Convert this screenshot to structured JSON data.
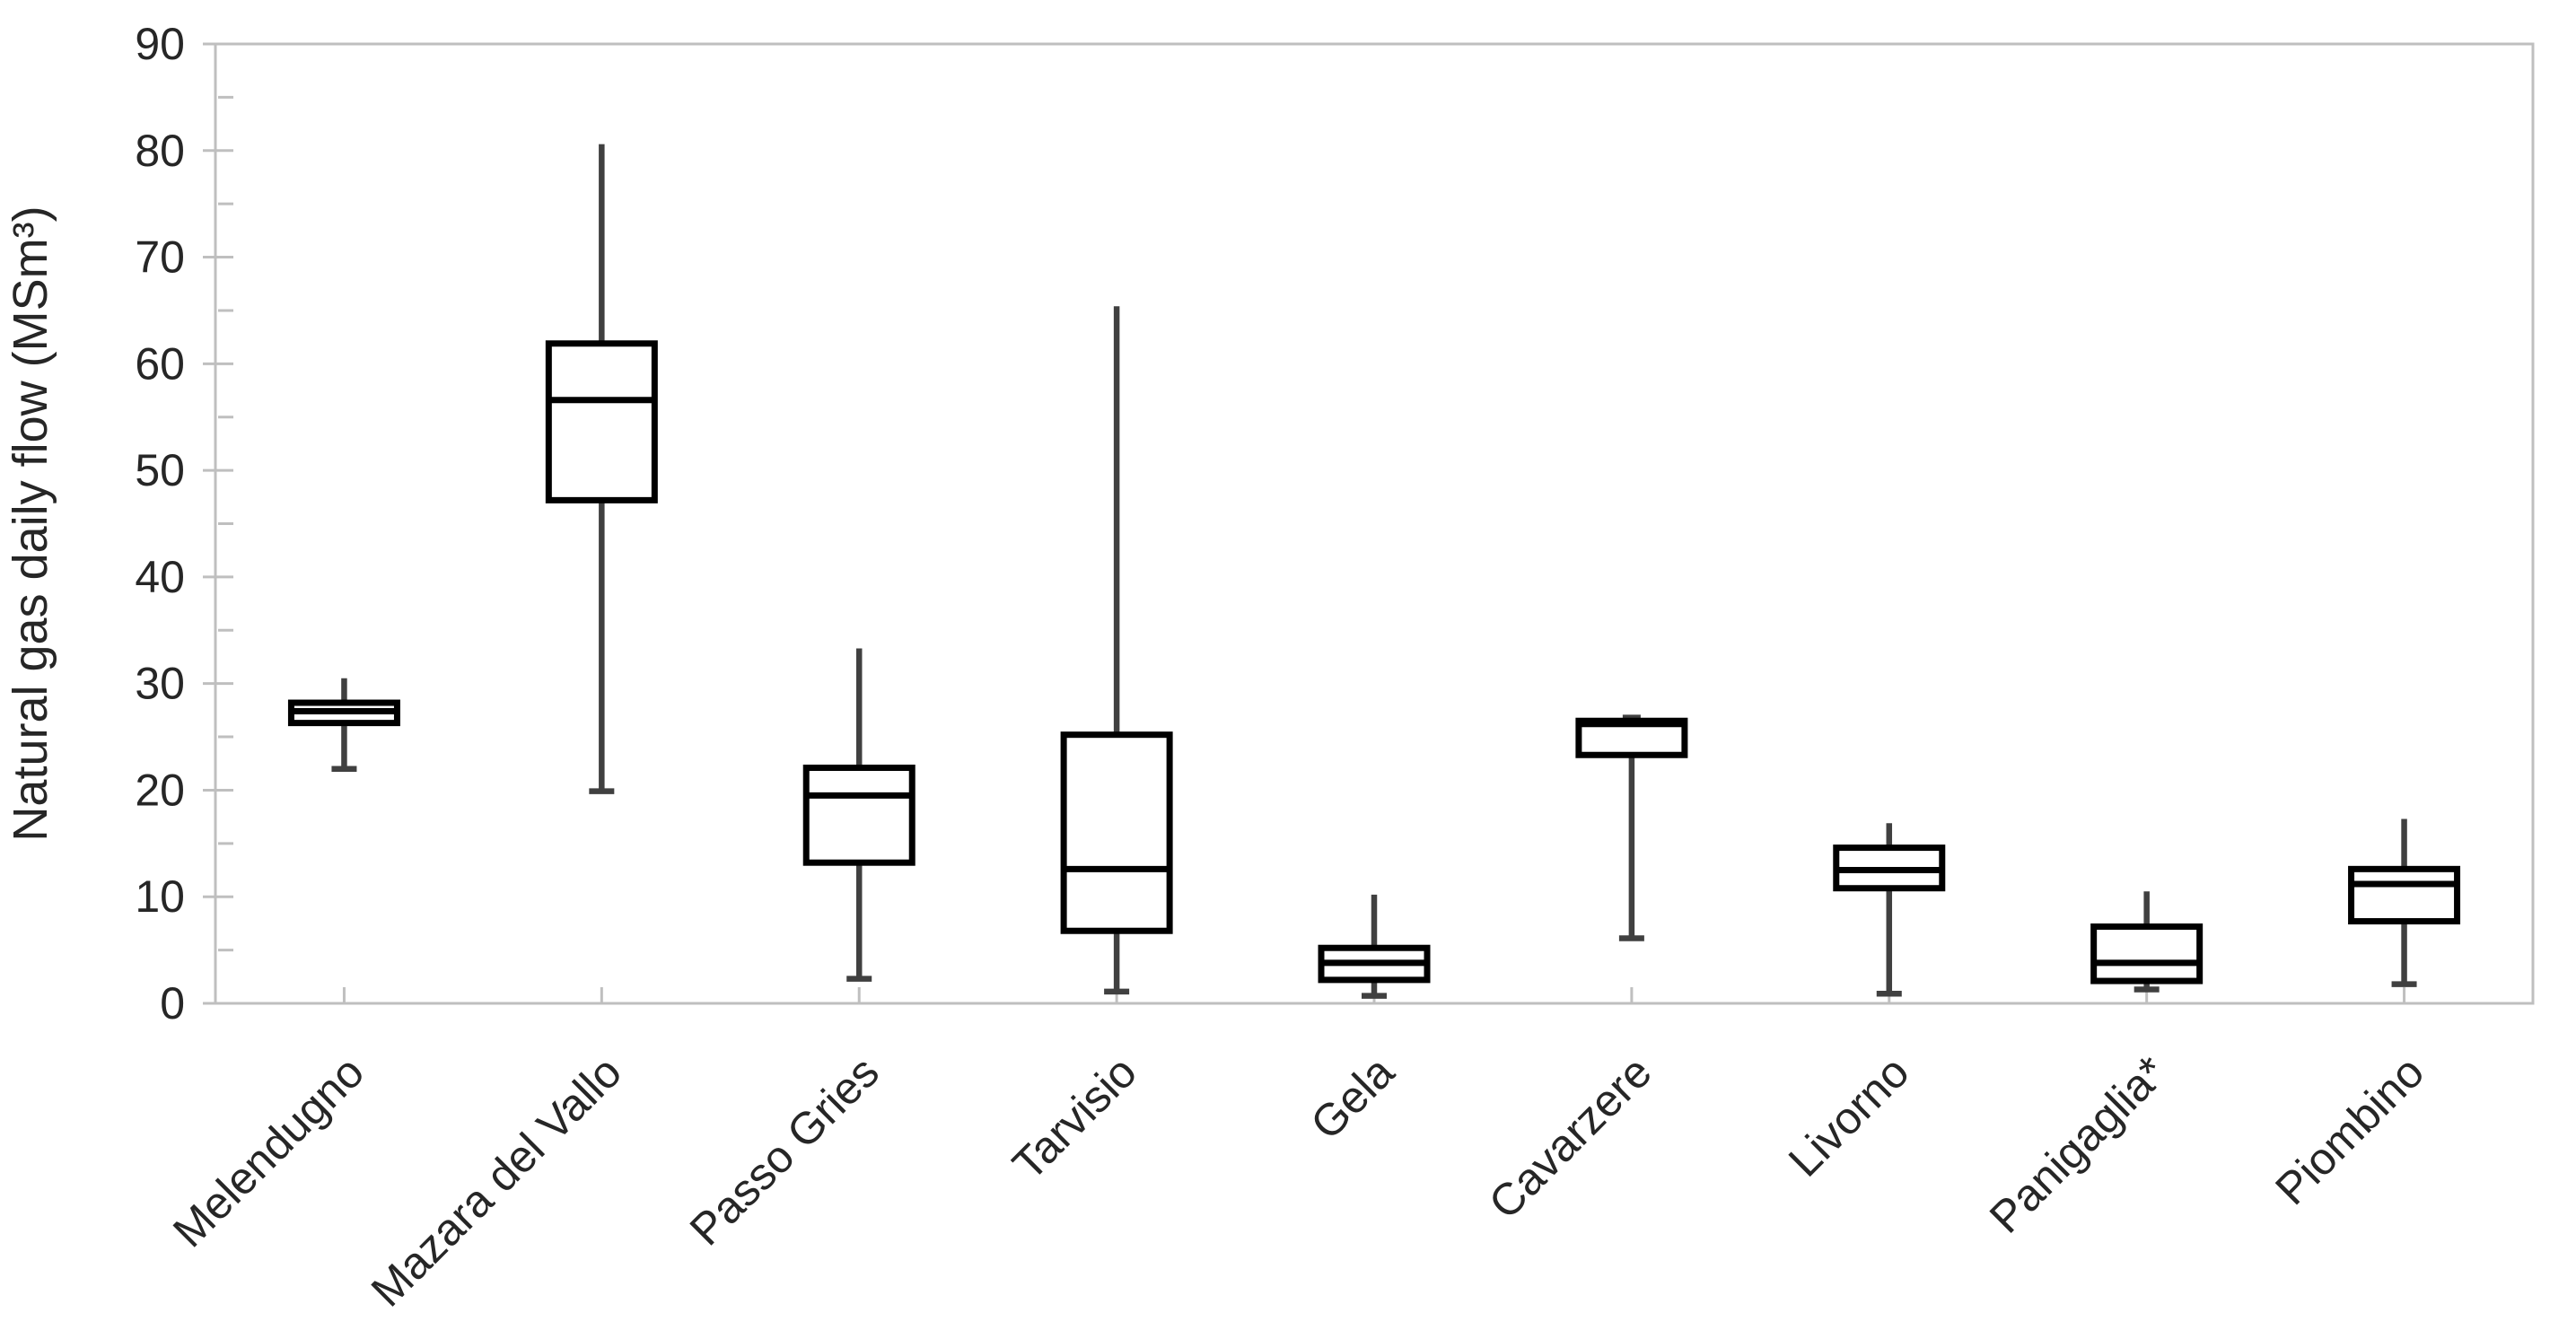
{
  "chart_data": {
    "type": "box",
    "title": "",
    "xlabel": "",
    "ylabel": "Natural gas daily flow (MSm³)",
    "ylim": [
      0,
      90
    ],
    "y_major_step": 10,
    "y_minor_step": 5,
    "y_tick_labels": [
      "0",
      "10",
      "20",
      "30",
      "40",
      "50",
      "60",
      "70",
      "80",
      "90"
    ],
    "grid": "off",
    "legend": "none",
    "categories": [
      "Melendugno",
      "Mazara del Vallo",
      "Passo Gries",
      "Tarvisio",
      "Gela",
      "Cavarzere",
      "Livorno",
      "Panigaglia*",
      "Piombino"
    ],
    "series": [
      {
        "name": "Melendugno",
        "min": 22.0,
        "q1": 26.3,
        "median": 27.4,
        "q3": 28.2,
        "max": 30.5
      },
      {
        "name": "Mazara del Vallo",
        "min": 19.9,
        "q1": 47.2,
        "median": 56.6,
        "q3": 61.9,
        "max": 80.6
      },
      {
        "name": "Passo Gries",
        "min": 2.3,
        "q1": 13.2,
        "median": 19.5,
        "q3": 22.1,
        "max": 33.3
      },
      {
        "name": "Tarvisio",
        "min": 1.1,
        "q1": 6.8,
        "median": 12.6,
        "q3": 25.2,
        "max": 65.4
      },
      {
        "name": "Gela",
        "min": 0.7,
        "q1": 2.2,
        "median": 3.8,
        "q3": 5.2,
        "max": 10.2
      },
      {
        "name": "Cavarzere",
        "min": 6.1,
        "q1": 23.3,
        "median": 26.2,
        "q3": 26.5,
        "max": 26.8
      },
      {
        "name": "Livorno",
        "min": 0.9,
        "q1": 10.8,
        "median": 12.5,
        "q3": 14.6,
        "max": 16.9
      },
      {
        "name": "Panigaglia*",
        "min": 1.3,
        "q1": 2.1,
        "median": 3.8,
        "q3": 7.2,
        "max": 10.5
      },
      {
        "name": "Piombino",
        "min": 1.8,
        "q1": 7.7,
        "median": 11.2,
        "q3": 12.6,
        "max": 17.3
      }
    ],
    "colors": {
      "box_border": "#000000",
      "box_fill": "#ffffff",
      "median": "#000000",
      "whisker": "#404040",
      "axis": "#bfbfbf",
      "text": "#262626",
      "background": "#ffffff"
    }
  }
}
